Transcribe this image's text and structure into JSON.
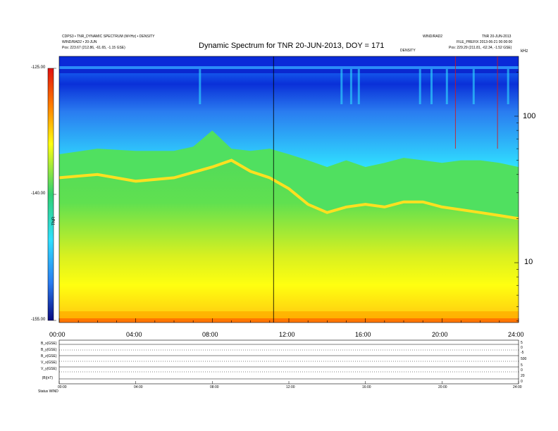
{
  "header": {
    "left_line1": "CDPS3 • TNR_DYNAMIC SPECTRUM (W²/Hz) • DENSITY",
    "left_line2": "WIND/RAD2 • 20-JUN",
    "left_pos_label": "Pos:",
    "left_pos_value": "223.67 (212.86, -61.65, -1.15 GSE)",
    "right_line1": "WIND/RAD2",
    "right_line2": "TNR 20-JUN-2013",
    "right_line3": "FILE_PREFIX 2013-06-21 00:00:00",
    "right_pos_label": "Pos:",
    "right_pos_value": "229.29 (211.81, -62.34, -1.52 GSE)",
    "center_small": "DENSITY"
  },
  "chart_data": {
    "type": "heatmap",
    "title": "Dynamic Spectrum for TNR 20-JUN-2013, DOY = 171",
    "x_ticks": [
      "00:00",
      "04:00",
      "08:00",
      "12:00",
      "16:00",
      "20:00",
      "24:00"
    ],
    "x_range_hours": [
      0,
      24
    ],
    "y_scale": "log",
    "y_ticks": [
      "100",
      "10"
    ],
    "y_unit": "kHz",
    "colorbar": {
      "ticks": [
        "-125.00",
        "-140.00",
        "-155.00"
      ],
      "range": [
        -155,
        -125
      ],
      "label": "TNR"
    },
    "colors": {
      "top_band": "#0a2ad8",
      "mid_blue": "#2a7cf0",
      "cyan": "#30e0ff",
      "green": "#30d070",
      "yellow": "#ffff10",
      "orange": "#ff8000",
      "red": "#e01010"
    },
    "marker_lines_hours": [
      11.2
    ],
    "red_marker_lines_hours": [
      20.7,
      22.9
    ],
    "band_boundaries": [
      {
        "name": "cyan_to_green",
        "hours": [
          0,
          2,
          4,
          6,
          7,
          8,
          9,
          10,
          11,
          12,
          13,
          14,
          15,
          16,
          17,
          18,
          19,
          20,
          21,
          22,
          23,
          24
        ],
        "khz": [
          55,
          60,
          58,
          58,
          62,
          80,
          60,
          58,
          60,
          55,
          50,
          45,
          50,
          45,
          48,
          52,
          50,
          48,
          50,
          50,
          48,
          45
        ]
      },
      {
        "name": "green_to_light_green",
        "hours": [
          0,
          2,
          4,
          6,
          8,
          9,
          10,
          11,
          12,
          13,
          14,
          15,
          16,
          17,
          18,
          19,
          20,
          21,
          22,
          23,
          24
        ],
        "khz": [
          38,
          40,
          36,
          38,
          45,
          50,
          42,
          38,
          32,
          25,
          22,
          24,
          25,
          24,
          26,
          26,
          24,
          23,
          22,
          21,
          20
        ]
      }
    ]
  },
  "bottom_panel": {
    "row_labels": [
      "B_x(GSE)",
      "B_y(GSE)",
      "B_z(GSE)",
      "V_x(GSE)",
      "V_y(GSE)",
      "|B|(nT)"
    ],
    "right_labels": [
      "5",
      "0",
      "-5",
      "500",
      "5",
      "0",
      "20",
      "0"
    ],
    "x_ticks": [
      "00:00",
      "04:00",
      "08:00",
      "12:00",
      "16:00",
      "20:00",
      "24:00"
    ],
    "footer_label": "Status",
    "footer_value": "WIND"
  }
}
